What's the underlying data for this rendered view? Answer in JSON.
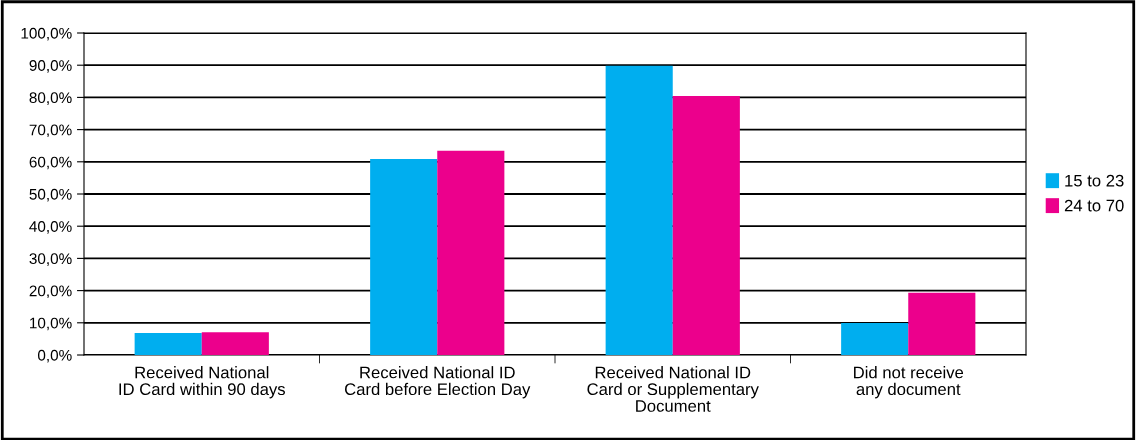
{
  "chart_data": {
    "type": "bar",
    "categories": [
      "Received National\nID Card within 90 days",
      "Received National ID\nCard before Election Day",
      "Received National ID\nCard or Supplementary\nDocument",
      "Did not receive\nany document"
    ],
    "series": [
      {
        "name": "15 to 23",
        "color": "#00aeef",
        "values": [
          6.8,
          60.9,
          89.8,
          9.9
        ]
      },
      {
        "name": "24 to 70",
        "color": "#ec008c",
        "values": [
          7.1,
          63.4,
          80.4,
          19.3
        ]
      }
    ],
    "ylim": [
      0,
      100
    ],
    "yticks": [
      {
        "value": 0,
        "label": "0,0%"
      },
      {
        "value": 10,
        "label": "10,0%"
      },
      {
        "value": 20,
        "label": "20,0%"
      },
      {
        "value": 30,
        "label": "30,0%"
      },
      {
        "value": 40,
        "label": "40,0%"
      },
      {
        "value": 50,
        "label": "50,0%"
      },
      {
        "value": 60,
        "label": "60,0%"
      },
      {
        "value": 70,
        "label": "70,0%"
      },
      {
        "value": 80,
        "label": "80,0%"
      },
      {
        "value": 90,
        "label": "90,0%"
      },
      {
        "value": 100,
        "label": "100,0%"
      }
    ],
    "grid": "y",
    "legend": "right"
  }
}
